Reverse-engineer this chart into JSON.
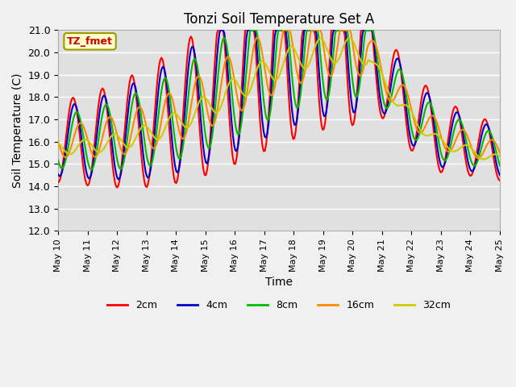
{
  "title": "Tonzi Soil Temperature Set A",
  "xlabel": "Time",
  "ylabel": "Soil Temperature (C)",
  "ylim": [
    12.0,
    21.0
  ],
  "yticks": [
    12.0,
    13.0,
    14.0,
    15.0,
    16.0,
    17.0,
    18.0,
    19.0,
    20.0,
    21.0
  ],
  "xtick_labels": [
    "May 10",
    "May 11",
    "May 12",
    "May 13",
    "May 14",
    "May 15",
    "May 16",
    "May 17",
    "May 18",
    "May 19",
    "May 20",
    "May 21",
    "May 22",
    "May 23",
    "May 24",
    "May 25"
  ],
  "annotation_text": "TZ_fmet",
  "annotation_color": "#cc0000",
  "annotation_bg": "#ffffcc",
  "annotation_edge": "#999900",
  "colors": {
    "2cm": "#ff0000",
    "4cm": "#0000cc",
    "8cm": "#00bb00",
    "16cm": "#ff8800",
    "32cm": "#cccc00"
  },
  "background_color": "#e0e0e0",
  "grid_color": "#ffffff",
  "legend_colors": [
    "#ff0000",
    "#0000cc",
    "#00bb00",
    "#ff8800",
    "#cccc00"
  ],
  "legend_labels": [
    "2cm",
    "4cm",
    "8cm",
    "16cm",
    "32cm"
  ]
}
